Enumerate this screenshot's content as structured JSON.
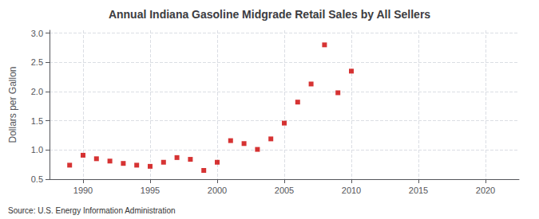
{
  "chart_data": {
    "type": "scatter",
    "title": "Annual Indiana Gasoline Midgrade Retail Sales by All Sellers",
    "ylabel": "Dollars per Gallon",
    "source": "Source: U.S. Energy Information Administration",
    "color": "#cc0000",
    "marker": "square",
    "grid": true,
    "x": [
      1989,
      1990,
      1991,
      1992,
      1993,
      1994,
      1995,
      1996,
      1997,
      1998,
      1999,
      2000,
      2001,
      2002,
      2003,
      2004,
      2005,
      2006,
      2007,
      2008,
      2009,
      2010
    ],
    "values": [
      0.74,
      0.91,
      0.85,
      0.81,
      0.77,
      0.74,
      0.72,
      0.79,
      0.87,
      0.84,
      0.65,
      0.79,
      1.16,
      1.11,
      1.01,
      1.19,
      1.46,
      1.82,
      2.13,
      2.8,
      1.98,
      2.35
    ],
    "xlim": [
      1987.5,
      2022.5
    ],
    "ylim": [
      0.5,
      3.05
    ],
    "xticks": [
      1990,
      1995,
      2000,
      2005,
      2010,
      2015,
      2020
    ],
    "yticks": [
      0.5,
      {
        "value": 1.0,
        "label": "1.0"
      },
      1.5,
      {
        "value": 2.0,
        "label": "2.0"
      },
      2.5,
      {
        "value": 3.0,
        "label": "3.0"
      }
    ]
  }
}
